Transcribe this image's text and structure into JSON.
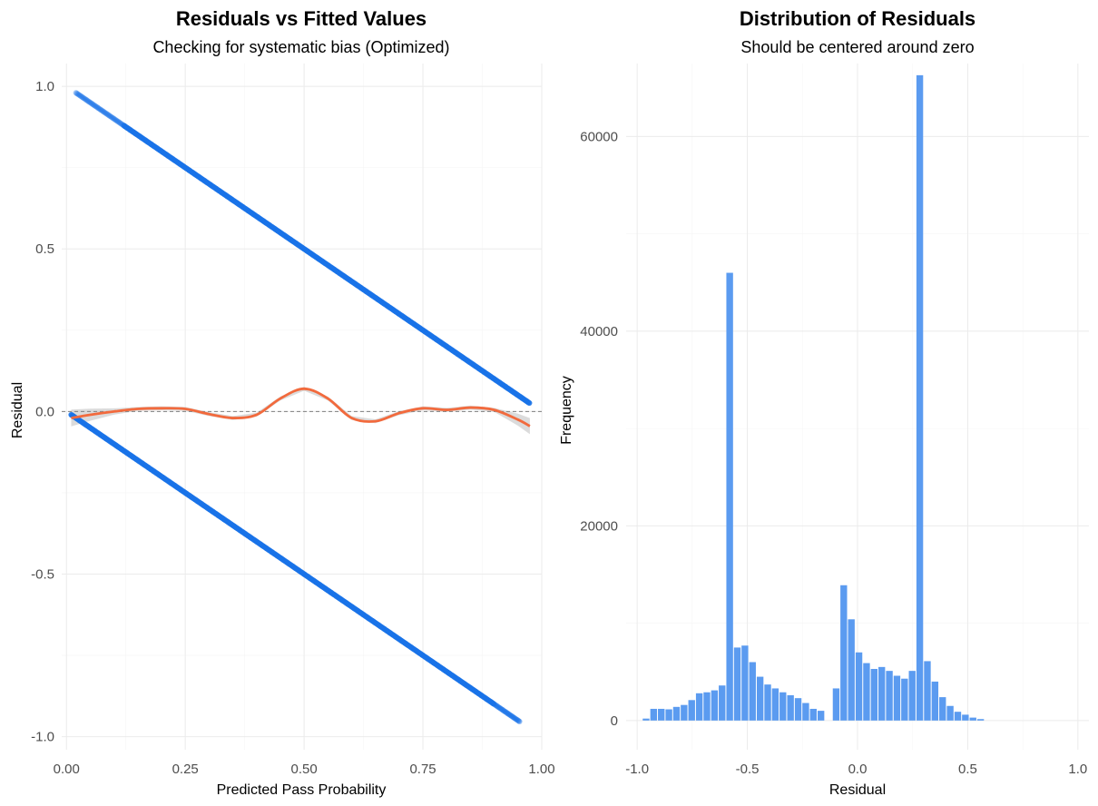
{
  "chart_data": [
    {
      "type": "scatter",
      "title": "Residuals vs Fitted Values",
      "subtitle": "Checking for systematic bias (Optimized)",
      "xlabel": "Predicted Pass Probability",
      "ylabel": "Residual",
      "xlim": [
        -0.01,
        1.0
      ],
      "ylim": [
        -1.04,
        1.07
      ],
      "x_ticks": [
        0.0,
        0.25,
        0.5,
        0.75,
        1.0
      ],
      "x_tick_labels": [
        "0.00",
        "0.25",
        "0.50",
        "0.75",
        "1.00"
      ],
      "y_ticks": [
        -1.0,
        -0.5,
        0.0,
        0.5,
        1.0
      ],
      "y_tick_labels": [
        "-1.0",
        "-0.5",
        "0.0",
        "0.5",
        "1.0"
      ],
      "grid": true,
      "reference_line": {
        "y": 0.0,
        "style": "dashed"
      },
      "series": [
        {
          "kind": "points",
          "x_range": [
            0.02,
            0.975
          ],
          "relation": "residual = 1 - fitted"
        },
        {
          "kind": "points",
          "x_range": [
            0.01,
            0.955
          ],
          "relation": "residual = 0 - fitted"
        },
        {
          "kind": "smooth",
          "x": [
            0.01,
            0.05,
            0.1,
            0.15,
            0.2,
            0.25,
            0.3,
            0.35,
            0.4,
            0.45,
            0.5,
            0.55,
            0.6,
            0.65,
            0.7,
            0.75,
            0.8,
            0.85,
            0.9,
            0.95,
            0.975
          ],
          "y": [
            -0.02,
            -0.01,
            0.0,
            0.008,
            0.01,
            0.008,
            -0.008,
            -0.02,
            -0.01,
            0.04,
            0.07,
            0.04,
            -0.02,
            -0.03,
            -0.005,
            0.01,
            0.005,
            0.012,
            0.005,
            -0.025,
            -0.045
          ]
        }
      ],
      "colors": {
        "points": "#1a73e8",
        "smooth": "#f26a3d",
        "band": "#bdbdbd",
        "refline": "#7f7f7f"
      }
    },
    {
      "type": "bar",
      "title": "Distribution of Residuals",
      "subtitle": "Should be centered around zero",
      "xlabel": "Residual",
      "ylabel": "Frequency",
      "xlim": [
        -1.05,
        1.05
      ],
      "ylim": [
        -3000,
        67500
      ],
      "x_ticks": [
        -1.0,
        -0.5,
        0.0,
        0.5,
        1.0
      ],
      "x_tick_labels": [
        "-1.0",
        "-0.5",
        "0.0",
        "0.5",
        "1.0"
      ],
      "y_ticks": [
        0,
        20000,
        40000,
        60000
      ],
      "y_tick_labels": [
        "0",
        "20000",
        "40000",
        "60000"
      ],
      "grid": true,
      "bin_width": 0.0345,
      "bin_centers": [
        -0.9575,
        -0.923,
        -0.8885,
        -0.854,
        -0.8195,
        -0.785,
        -0.7505,
        -0.716,
        -0.6815,
        -0.647,
        -0.6125,
        -0.578,
        -0.5435,
        -0.509,
        -0.4745,
        -0.44,
        -0.4055,
        -0.371,
        -0.3365,
        -0.302,
        -0.2675,
        -0.233,
        -0.1985,
        -0.164,
        -0.1295,
        -0.095,
        -0.0605,
        -0.026,
        0.0085,
        0.043,
        0.0775,
        0.112,
        0.1465,
        0.181,
        0.2155,
        0.25,
        0.2845,
        0.319,
        0.3535,
        0.388,
        0.4225,
        0.457,
        0.4915,
        0.526,
        0.5605,
        0.595,
        0.6295,
        0.664,
        0.6985,
        0.733,
        0.7675,
        0.802,
        0.8365,
        0.871,
        0.9055
      ],
      "values": [
        200,
        1200,
        1200,
        1150,
        1400,
        1600,
        2100,
        2800,
        2900,
        3100,
        3600,
        46000,
        7500,
        7700,
        6000,
        4500,
        3700,
        3300,
        2900,
        2600,
        2300,
        1800,
        1200,
        1000,
        0,
        3300,
        13900,
        10400,
        7000,
        5900,
        5300,
        5500,
        5100,
        4600,
        4300,
        5100,
        66300,
        6100,
        4000,
        2400,
        1500,
        900,
        600,
        300,
        150,
        0,
        0,
        0,
        0,
        0,
        0,
        0,
        0,
        0,
        0
      ],
      "colors": {
        "bars": "#5b9bf0"
      }
    }
  ]
}
